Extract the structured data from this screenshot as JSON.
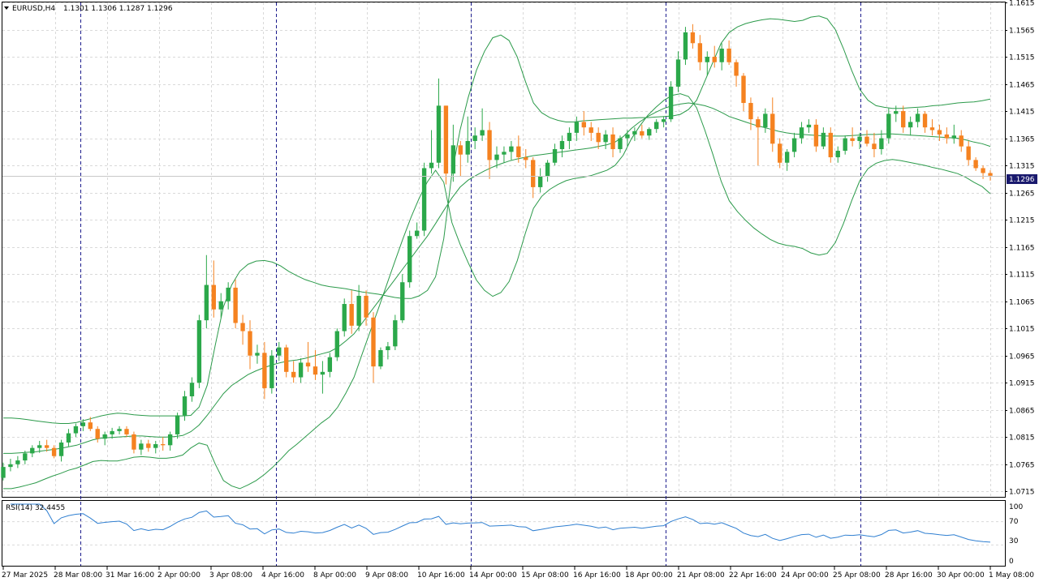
{
  "window": {
    "symbol_label": "EURUSD,H4",
    "ohlc_label": "1.1301 1.1306 1.1287 1.1296",
    "current_price": "1.1296"
  },
  "indicator": {
    "label": "RSI(14) 32.4455",
    "levels": [
      "100",
      "70",
      "30",
      "0"
    ],
    "range": [
      0,
      100
    ],
    "level_lines": [
      70,
      30
    ]
  },
  "colors": {
    "bull": "#2ba84a",
    "bear": "#f58220",
    "bands": "#2b9a4a",
    "rsi": "#2f7fd1",
    "grid": "#d9d9d9",
    "separator": "#1a1a8c",
    "axis": "#000000"
  },
  "chart_data": {
    "type": "candlestick",
    "title": "EURUSD,H4",
    "symbol": "EURUSD",
    "timeframe": "H4",
    "ylim": [
      1.0705,
      1.1615
    ],
    "price_ticks": [
      "1.1615",
      "1.1565",
      "1.1515",
      "1.1465",
      "1.1415",
      "1.1365",
      "1.1315",
      "1.1265",
      "1.1215",
      "1.1165",
      "1.1115",
      "1.1065",
      "1.1015",
      "1.0965",
      "1.0915",
      "1.0865",
      "1.0815",
      "1.0765",
      "1.0715"
    ],
    "time_labels": [
      "27 Mar 2025",
      "28 Mar 08:00",
      "31 Mar 16:00",
      "2 Apr 00:00",
      "3 Apr 08:00",
      "4 Apr 16:00",
      "8 Apr 00:00",
      "9 Apr 08:00",
      "10 Apr 16:00",
      "14 Apr 00:00",
      "15 Apr 08:00",
      "16 Apr 16:00",
      "18 Apr 00:00",
      "21 Apr 08:00",
      "22 Apr 16:00",
      "24 Apr 00:00",
      "25 Apr 08:00",
      "28 Apr 16:00",
      "30 Apr 00:00",
      "1 May 08:00"
    ],
    "grid": true,
    "overlay": "Bollinger Bands",
    "indicator": "RSI(14)",
    "last_price": 1.1296,
    "candles": [
      [
        1.074,
        1.0768,
        1.0735,
        1.076
      ],
      [
        1.076,
        1.0775,
        1.0752,
        1.0765
      ],
      [
        1.0765,
        1.078,
        1.0758,
        1.0772
      ],
      [
        1.0772,
        1.079,
        1.0765,
        1.0785
      ],
      [
        1.0785,
        1.08,
        1.0778,
        1.0795
      ],
      [
        1.0795,
        1.0808,
        1.0786,
        1.08
      ],
      [
        1.08,
        1.081,
        1.0788,
        1.0795
      ],
      [
        1.0795,
        1.08,
        1.0776,
        1.078
      ],
      [
        1.078,
        1.081,
        1.077,
        1.0805
      ],
      [
        1.0805,
        1.083,
        1.0798,
        1.0822
      ],
      [
        1.0822,
        1.084,
        1.0815,
        1.0835
      ],
      [
        1.0835,
        1.0848,
        1.0826,
        1.0842
      ],
      [
        1.0842,
        1.0852,
        1.0826,
        1.083
      ],
      [
        1.083,
        1.0835,
        1.0805,
        1.0812
      ],
      [
        1.0812,
        1.0825,
        1.08,
        1.082
      ],
      [
        1.082,
        1.0832,
        1.0812,
        1.0826
      ],
      [
        1.0826,
        1.0835,
        1.082,
        1.083
      ],
      [
        1.083,
        1.0835,
        1.0815,
        1.082
      ],
      [
        1.082,
        1.0825,
        1.0785,
        1.0792
      ],
      [
        1.0792,
        1.081,
        1.0782,
        1.0803
      ],
      [
        1.0803,
        1.081,
        1.0788,
        1.0795
      ],
      [
        1.0795,
        1.0808,
        1.0785,
        1.0802
      ],
      [
        1.0802,
        1.0815,
        1.079,
        1.08
      ],
      [
        1.08,
        1.0825,
        1.079,
        1.082
      ],
      [
        1.082,
        1.086,
        1.0812,
        1.0855
      ],
      [
        1.0855,
        1.09,
        1.0845,
        1.089
      ],
      [
        1.089,
        1.0925,
        1.088,
        1.0915
      ],
      [
        1.0915,
        1.104,
        1.0905,
        1.103
      ],
      [
        1.103,
        1.115,
        1.1015,
        1.1095
      ],
      [
        1.1095,
        1.114,
        1.1035,
        1.105
      ],
      [
        1.105,
        1.108,
        1.1035,
        1.1065
      ],
      [
        1.1065,
        1.11,
        1.105,
        1.109
      ],
      [
        1.109,
        1.1105,
        1.1015,
        1.1025
      ],
      [
        1.1025,
        1.104,
        1.0985,
        1.101
      ],
      [
        1.101,
        1.103,
        1.094,
        1.0965
      ],
      [
        1.0965,
        1.0985,
        1.095,
        1.097
      ],
      [
        1.097,
        1.099,
        1.0885,
        1.0905
      ],
      [
        1.0905,
        1.0975,
        1.0895,
        1.0965
      ],
      [
        1.0965,
        1.099,
        1.0955,
        1.098
      ],
      [
        1.098,
        1.0985,
        1.0925,
        1.0935
      ],
      [
        1.0935,
        1.0955,
        1.0915,
        1.0925
      ],
      [
        1.0925,
        1.096,
        1.0915,
        1.0952
      ],
      [
        1.0952,
        1.099,
        1.0935,
        1.0945
      ],
      [
        1.0945,
        1.0975,
        1.092,
        1.093
      ],
      [
        1.093,
        1.0955,
        1.0895,
        1.0935
      ],
      [
        1.0935,
        1.097,
        1.0925,
        1.0962
      ],
      [
        1.0962,
        1.1015,
        1.0955,
        1.101
      ],
      [
        1.101,
        1.107,
        1.1,
        1.106
      ],
      [
        1.106,
        1.1085,
        1.1005,
        1.102
      ],
      [
        1.102,
        1.1095,
        1.101,
        1.1075
      ],
      [
        1.1075,
        1.1085,
        1.102,
        1.1035
      ],
      [
        1.1035,
        1.1045,
        1.0915,
        1.0945
      ],
      [
        1.0945,
        1.098,
        1.094,
        1.0975
      ],
      [
        1.0975,
        1.099,
        1.0958,
        1.0982
      ],
      [
        1.0982,
        1.104,
        1.0975,
        1.103
      ],
      [
        1.103,
        1.1115,
        1.1025,
        1.11
      ],
      [
        1.11,
        1.1195,
        1.109,
        1.1185
      ],
      [
        1.1185,
        1.121,
        1.118,
        1.1195
      ],
      [
        1.1195,
        1.132,
        1.1185,
        1.131
      ],
      [
        1.131,
        1.138,
        1.13,
        1.132
      ],
      [
        1.132,
        1.1475,
        1.131,
        1.1425
      ],
      [
        1.1425,
        1.1425,
        1.128,
        1.13
      ],
      [
        1.13,
        1.139,
        1.1285,
        1.1352
      ],
      [
        1.1352,
        1.136,
        1.1295,
        1.1335
      ],
      [
        1.1335,
        1.1405,
        1.132,
        1.136
      ],
      [
        1.136,
        1.1385,
        1.1345,
        1.137
      ],
      [
        1.137,
        1.142,
        1.136,
        1.138
      ],
      [
        1.138,
        1.1395,
        1.129,
        1.1325
      ],
      [
        1.1325,
        1.135,
        1.131,
        1.1335
      ],
      [
        1.1335,
        1.135,
        1.132,
        1.134
      ],
      [
        1.134,
        1.136,
        1.1325,
        1.135
      ],
      [
        1.135,
        1.137,
        1.132,
        1.133
      ],
      [
        1.133,
        1.1345,
        1.131,
        1.1325
      ],
      [
        1.1325,
        1.133,
        1.1255,
        1.1275
      ],
      [
        1.1275,
        1.131,
        1.1265,
        1.1295
      ],
      [
        1.1295,
        1.1325,
        1.1285,
        1.132
      ],
      [
        1.132,
        1.1355,
        1.1315,
        1.1345
      ],
      [
        1.1345,
        1.137,
        1.133,
        1.136
      ],
      [
        1.136,
        1.1385,
        1.1345,
        1.1375
      ],
      [
        1.1375,
        1.1405,
        1.136,
        1.1395
      ],
      [
        1.1395,
        1.1415,
        1.137,
        1.1385
      ],
      [
        1.1385,
        1.1395,
        1.136,
        1.1375
      ],
      [
        1.1375,
        1.1385,
        1.1345,
        1.1358
      ],
      [
        1.1358,
        1.138,
        1.1345,
        1.1372
      ],
      [
        1.1372,
        1.1385,
        1.133,
        1.1345
      ],
      [
        1.1345,
        1.137,
        1.1338,
        1.1365
      ],
      [
        1.1365,
        1.138,
        1.135,
        1.1372
      ],
      [
        1.1372,
        1.1385,
        1.136,
        1.1378
      ],
      [
        1.1378,
        1.139,
        1.1365,
        1.137
      ],
      [
        1.137,
        1.1385,
        1.1362,
        1.1382
      ],
      [
        1.1382,
        1.14,
        1.1375,
        1.1395
      ],
      [
        1.1395,
        1.1405,
        1.1385,
        1.14
      ],
      [
        1.14,
        1.147,
        1.1395,
        1.146
      ],
      [
        1.146,
        1.1525,
        1.145,
        1.151
      ],
      [
        1.151,
        1.157,
        1.15,
        1.156
      ],
      [
        1.156,
        1.1575,
        1.153,
        1.154
      ],
      [
        1.154,
        1.1555,
        1.149,
        1.1505
      ],
      [
        1.1505,
        1.1525,
        1.148,
        1.1515
      ],
      [
        1.1515,
        1.1535,
        1.1495,
        1.1505
      ],
      [
        1.1505,
        1.154,
        1.149,
        1.153
      ],
      [
        1.153,
        1.1545,
        1.15,
        1.1505
      ],
      [
        1.1505,
        1.151,
        1.146,
        1.148
      ],
      [
        1.148,
        1.1485,
        1.1415,
        1.143
      ],
      [
        1.143,
        1.144,
        1.138,
        1.14
      ],
      [
        1.14,
        1.1405,
        1.1315,
        1.1385
      ],
      [
        1.1385,
        1.142,
        1.1375,
        1.141
      ],
      [
        1.141,
        1.144,
        1.134,
        1.1355
      ],
      [
        1.1355,
        1.1365,
        1.131,
        1.132
      ],
      [
        1.132,
        1.1345,
        1.1305,
        1.134
      ],
      [
        1.134,
        1.1375,
        1.133,
        1.1365
      ],
      [
        1.1365,
        1.1395,
        1.1355,
        1.1385
      ],
      [
        1.1385,
        1.14,
        1.1375,
        1.139
      ],
      [
        1.139,
        1.14,
        1.134,
        1.135
      ],
      [
        1.135,
        1.1385,
        1.1345,
        1.1375
      ],
      [
        1.1375,
        1.1385,
        1.132,
        1.133
      ],
      [
        1.133,
        1.135,
        1.132,
        1.1342
      ],
      [
        1.1342,
        1.137,
        1.1335,
        1.1365
      ],
      [
        1.1365,
        1.1385,
        1.135,
        1.136
      ],
      [
        1.136,
        1.1375,
        1.1345,
        1.1368
      ],
      [
        1.1368,
        1.138,
        1.135,
        1.1355
      ],
      [
        1.1355,
        1.1375,
        1.133,
        1.1345
      ],
      [
        1.1345,
        1.138,
        1.1335,
        1.1365
      ],
      [
        1.1365,
        1.142,
        1.1355,
        1.141
      ],
      [
        1.141,
        1.1425,
        1.1395,
        1.1415
      ],
      [
        1.1415,
        1.1425,
        1.1375,
        1.1385
      ],
      [
        1.1385,
        1.1405,
        1.137,
        1.1395
      ],
      [
        1.1395,
        1.142,
        1.1385,
        1.141
      ],
      [
        1.141,
        1.1415,
        1.1375,
        1.1385
      ],
      [
        1.1385,
        1.14,
        1.137,
        1.138
      ],
      [
        1.138,
        1.139,
        1.136,
        1.1372
      ],
      [
        1.1372,
        1.1385,
        1.1355,
        1.1365
      ],
      [
        1.1365,
        1.139,
        1.1355,
        1.137
      ],
      [
        1.137,
        1.138,
        1.134,
        1.135
      ],
      [
        1.135,
        1.136,
        1.1315,
        1.1325
      ],
      [
        1.1325,
        1.133,
        1.1305,
        1.131
      ],
      [
        1.131,
        1.1315,
        1.129,
        1.1301
      ],
      [
        1.1301,
        1.1306,
        1.1287,
        1.1296
      ]
    ],
    "bollinger_upper": [
      1.085,
      1.085,
      1.0849,
      1.0847,
      1.0845,
      1.0843,
      1.0841,
      1.084,
      1.084,
      1.0842,
      1.0846,
      1.085,
      1.0854,
      1.0857,
      1.0859,
      1.0858,
      1.0856,
      1.0855,
      1.0854,
      1.0854,
      1.0854,
      1.0854,
      1.0854,
      1.0855,
      1.087,
      1.091,
      1.0985,
      1.1055,
      1.1095,
      1.112,
      1.1133,
      1.1139,
      1.114,
      1.1137,
      1.113,
      1.112,
      1.1112,
      1.1105,
      1.11,
      1.1095,
      1.1092,
      1.109,
      1.1088,
      1.1085,
      1.1082,
      1.108,
      1.1078,
      1.1075,
      1.1072,
      1.107,
      1.107,
      1.1075,
      1.1085,
      1.111,
      1.118,
      1.13,
      1.138,
      1.144,
      1.149,
      1.1525,
      1.155,
      1.1555,
      1.1545,
      1.1515,
      1.147,
      1.143,
      1.1412,
      1.1403,
      1.1398,
      1.1395,
      1.1395,
      1.1397,
      1.1398,
      1.1399,
      1.14,
      1.1401,
      1.1402,
      1.1402,
      1.1403,
      1.1403,
      1.1404,
      1.1405,
      1.1406,
      1.1409,
      1.1418,
      1.1435,
      1.147,
      1.1505,
      1.154,
      1.156,
      1.157,
      1.1576,
      1.158,
      1.1583,
      1.1585,
      1.1584,
      1.1582,
      1.158,
      1.1582,
      1.1588,
      1.159,
      1.1585,
      1.1565,
      1.153,
      1.149,
      1.1455,
      1.1435,
      1.1425,
      1.1422,
      1.142,
      1.142,
      1.1421,
      1.1422,
      1.1423,
      1.1425,
      1.1426,
      1.1428,
      1.143,
      1.1431,
      1.1432,
      1.1434,
      1.1437
    ],
    "bollinger_middle": [
      1.0785,
      1.0785,
      1.0786,
      1.0787,
      1.0788,
      1.079,
      1.0792,
      1.0794,
      1.0797,
      1.08,
      1.0805,
      1.081,
      1.0813,
      1.0814,
      1.0815,
      1.0816,
      1.0817,
      1.0817,
      1.0816,
      1.0815,
      1.0815,
      1.0816,
      1.0818,
      1.0825,
      1.0837,
      1.0855,
      1.0875,
      1.0895,
      1.091,
      1.092,
      1.093,
      1.0937,
      1.0943,
      1.0948,
      1.0952,
      1.0955,
      1.0957,
      1.096,
      1.0964,
      1.0968,
      1.0972,
      1.098,
      1.0992,
      1.1005,
      1.1025,
      1.1045,
      1.1065,
      1.1085,
      1.1105,
      1.1125,
      1.1145,
      1.1165,
      1.1185,
      1.1208,
      1.1232,
      1.1255,
      1.1275,
      1.1288,
      1.1297,
      1.1305,
      1.1312,
      1.1318,
      1.1323,
      1.1327,
      1.133,
      1.1333,
      1.1335,
      1.1337,
      1.1339,
      1.1341,
      1.1343,
      1.1345,
      1.1347,
      1.135,
      1.1353,
      1.1358,
      1.1368,
      1.1383,
      1.1395,
      1.1405,
      1.1413,
      1.142,
      1.1425,
      1.1428,
      1.143,
      1.1428,
      1.1425,
      1.142,
      1.1413,
      1.1405,
      1.14,
      1.1395,
      1.139,
      1.1386,
      1.1382,
      1.1378,
      1.1375,
      1.1373,
      1.1372,
      1.1371,
      1.137,
      1.1369,
      1.1369,
      1.1369,
      1.137,
      1.1371,
      1.1372,
      1.1372,
      1.1373,
      1.1373,
      1.1372,
      1.1371,
      1.137,
      1.1369,
      1.1368,
      1.1367,
      1.1366,
      1.1365,
      1.1362,
      1.1358,
      1.1355,
      1.135
    ]
  }
}
